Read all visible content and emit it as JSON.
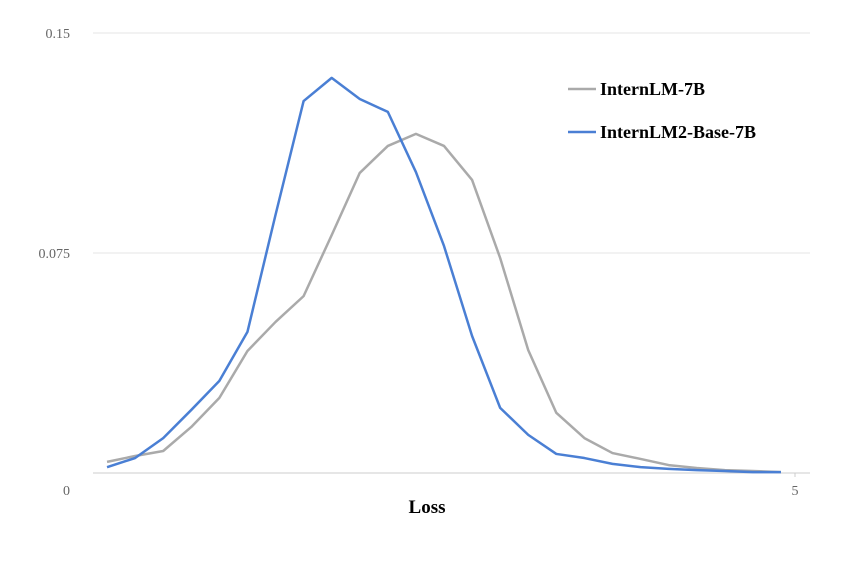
{
  "chart_data": {
    "type": "line",
    "x_label": "Loss",
    "x": [
      0.1,
      0.3,
      0.5,
      0.7,
      0.9,
      1.1,
      1.3,
      1.5,
      1.7,
      1.9,
      2.1,
      2.3,
      2.5,
      2.7,
      2.9,
      3.1,
      3.3,
      3.5,
      3.7,
      3.9,
      4.1,
      4.3,
      4.5,
      4.7,
      4.9
    ],
    "series": [
      {
        "name": "InternLM-7B",
        "color": "#aaaaaa",
        "values": [
          0.0038,
          0.0058,
          0.0075,
          0.0157,
          0.0256,
          0.0416,
          0.0515,
          0.0603,
          0.0811,
          0.1023,
          0.1115,
          0.1156,
          0.1115,
          0.0999,
          0.0733,
          0.0419,
          0.0205,
          0.0119,
          0.0068,
          0.0048,
          0.0027,
          0.0017,
          0.001,
          0.0007,
          0.0003
        ]
      },
      {
        "name": "InternLM2-Base-7B",
        "color": "#4a7fd4",
        "values": [
          0.002,
          0.0051,
          0.0119,
          0.0215,
          0.0314,
          0.0481,
          0.088,
          0.1268,
          0.1347,
          0.1275,
          0.1231,
          0.1026,
          0.0774,
          0.0467,
          0.0222,
          0.013,
          0.0065,
          0.0051,
          0.0031,
          0.002,
          0.0014,
          0.001,
          0.0007,
          0.0003,
          0.0003
        ]
      }
    ],
    "xlim": [
      0,
      5
    ],
    "xticks": [
      5
    ],
    "ylim": [
      0,
      0.15
    ],
    "yticks": [
      0,
      0.075,
      0.15
    ],
    "grid": true,
    "legend": "top-right"
  }
}
